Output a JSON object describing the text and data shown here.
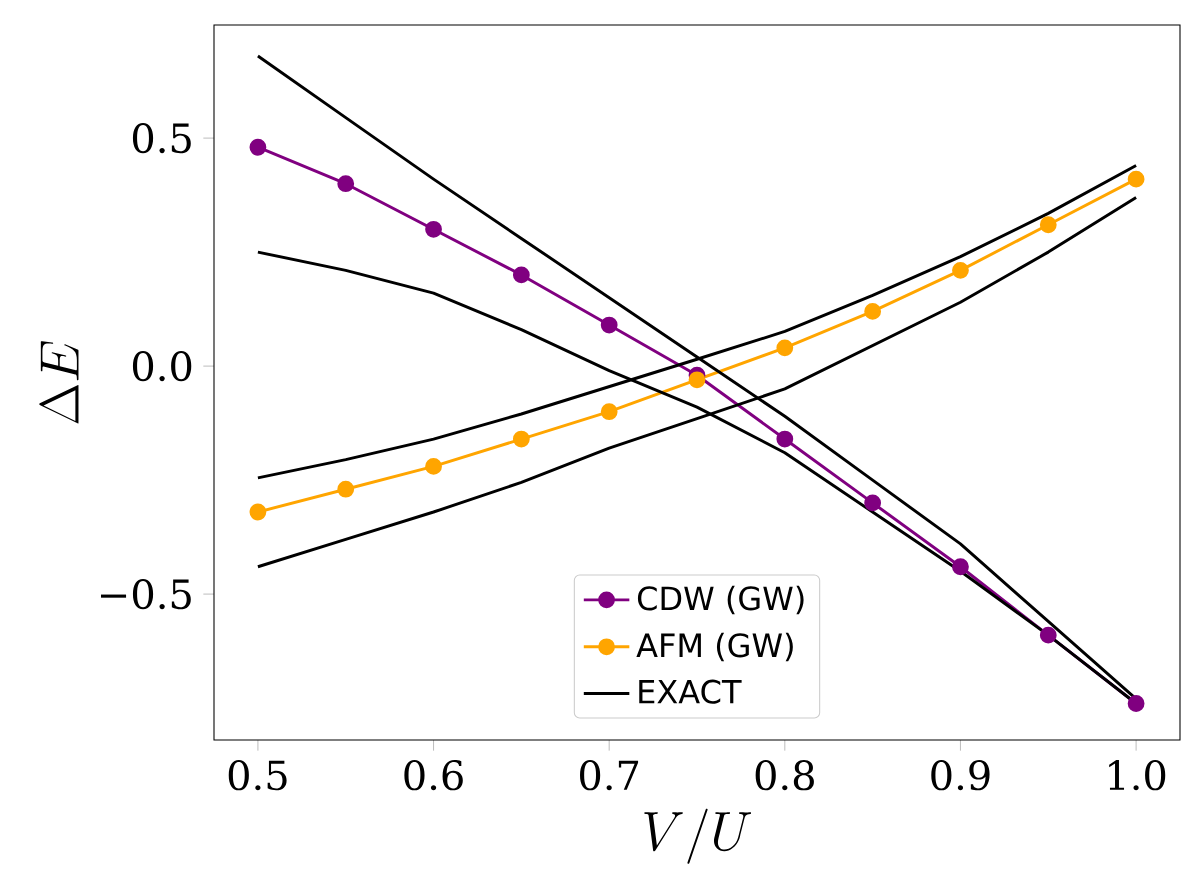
{
  "chart_data": {
    "type": "line",
    "xlabel": "V/U",
    "ylabel": "\\Delta E",
    "x": [
      0.5,
      0.55,
      0.6,
      0.65,
      0.7,
      0.75,
      0.8,
      0.85,
      0.9,
      0.95,
      1.0
    ],
    "series": [
      {
        "name": "CDW (GW)",
        "color": "#800080",
        "marker": "circle",
        "values": [
          0.48,
          0.4,
          0.3,
          0.2,
          0.09,
          -0.02,
          -0.16,
          -0.3,
          -0.44,
          -0.59,
          -0.74
        ]
      },
      {
        "name": "AFM (GW)",
        "color": "#ffa500",
        "marker": "circle",
        "values": [
          -0.32,
          -0.27,
          -0.22,
          -0.16,
          -0.1,
          -0.03,
          0.04,
          0.12,
          0.21,
          0.31,
          0.41
        ]
      },
      {
        "name": "EXACT",
        "color": "#000000",
        "marker": "none",
        "values": [
          0.68,
          0.545,
          0.41,
          0.28,
          0.15,
          0.02,
          -0.11,
          -0.25,
          -0.39,
          -0.56,
          -0.73
        ]
      },
      {
        "color": "#000000",
        "marker": "none",
        "values": [
          0.25,
          0.21,
          0.16,
          0.08,
          -0.01,
          -0.09,
          -0.19,
          -0.32,
          -0.45,
          -0.59,
          -0.74
        ]
      },
      {
        "color": "#000000",
        "marker": "none",
        "values": [
          -0.245,
          -0.205,
          -0.16,
          -0.105,
          -0.045,
          0.015,
          0.076,
          0.155,
          0.24,
          0.335,
          0.44
        ]
      },
      {
        "color": "#000000",
        "marker": "none",
        "values": [
          -0.44,
          -0.38,
          -0.32,
          -0.255,
          -0.18,
          -0.115,
          -0.05,
          0.045,
          0.14,
          0.25,
          0.37
        ]
      }
    ],
    "xlim": [
      0.475,
      1.025
    ],
    "ylim": [
      -0.82,
      0.748
    ],
    "xticks": [
      0.5,
      0.6,
      0.7,
      0.8,
      0.9,
      {
        "value": 1.0,
        "label": "1.0"
      }
    ],
    "yticks": [
      {
        "value": -0.5,
        "label": "−0.5"
      },
      {
        "value": 0.0,
        "label": "0.0"
      },
      0.5
    ],
    "grid": false,
    "legend": "bottom"
  }
}
